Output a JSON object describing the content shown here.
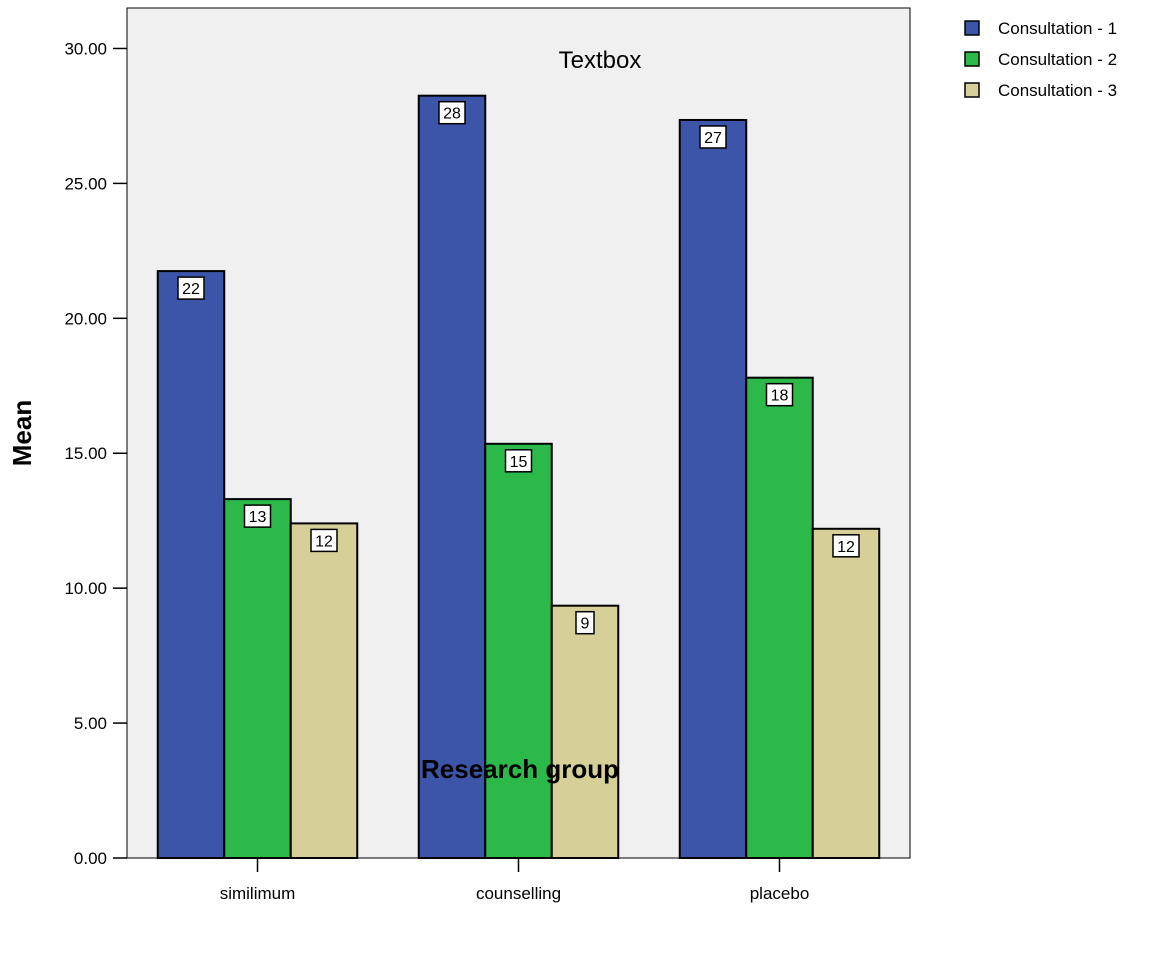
{
  "chart_data": {
    "type": "bar",
    "title": "Textbox",
    "xlabel": "Research group",
    "ylabel": "Mean",
    "categories": [
      "similimum",
      "counselling",
      "placebo"
    ],
    "series": [
      {
        "name": "Consultation - 1",
        "color": "#3d55a8",
        "values": [
          21.75,
          28.25,
          27.35
        ],
        "labels": [
          "22",
          "28",
          "27"
        ]
      },
      {
        "name": "Consultation - 2",
        "color": "#2db84a",
        "values": [
          13.3,
          15.35,
          17.8
        ],
        "labels": [
          "13",
          "15",
          "18"
        ]
      },
      {
        "name": "Consultation - 3",
        "color": "#d6cf98",
        "values": [
          12.4,
          9.35,
          12.2
        ],
        "labels": [
          "12",
          "9",
          "12"
        ]
      }
    ],
    "ylim": [
      0,
      31.5
    ],
    "yticks": [
      "0.00",
      "5.00",
      "10.00",
      "15.00",
      "20.00",
      "25.00",
      "30.00"
    ],
    "ytick_values": [
      0,
      5,
      10,
      15,
      20,
      25,
      30
    ],
    "grid": false,
    "legend_position": "top-right",
    "plot_background": "#f0f0f0"
  }
}
